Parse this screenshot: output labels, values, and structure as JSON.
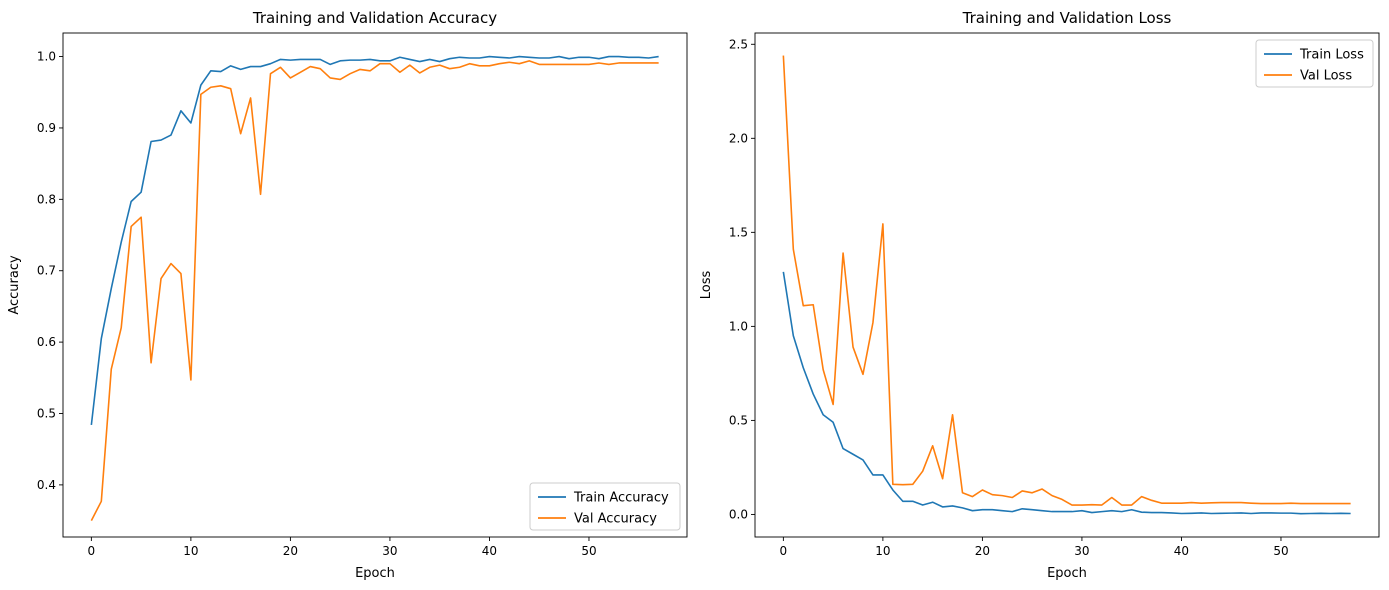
{
  "chart_data": [
    {
      "type": "line",
      "title": "Training and Validation Accuracy",
      "xlabel": "Epoch",
      "ylabel": "Accuracy",
      "xlim": [
        -2.85,
        59.85
      ],
      "ylim": [
        0.327,
        1.033
      ],
      "xticks": [
        0,
        10,
        20,
        30,
        40,
        50
      ],
      "yticks": [
        0.4,
        0.5,
        0.6,
        0.7,
        0.8,
        0.9,
        1.0
      ],
      "ytick_labels": [
        "0.4",
        "0.5",
        "0.6",
        "0.7",
        "0.8",
        "0.9",
        "1.0"
      ],
      "grid": false,
      "legend_position": "lower-right",
      "series": [
        {
          "name": "Train Accuracy",
          "color": "#1f77b4",
          "values": [
            0.484,
            0.605,
            0.675,
            0.74,
            0.797,
            0.81,
            0.881,
            0.883,
            0.89,
            0.924,
            0.907,
            0.96,
            0.98,
            0.979,
            0.987,
            0.982,
            0.986,
            0.986,
            0.99,
            0.996,
            0.995,
            0.996,
            0.996,
            0.996,
            0.989,
            0.994,
            0.995,
            0.995,
            0.996,
            0.994,
            0.994,
            0.999,
            0.996,
            0.993,
            0.996,
            0.993,
            0.997,
            0.999,
            0.998,
            0.998,
            1.0,
            0.999,
            0.998,
            1.0,
            0.999,
            0.998,
            0.998,
            1.0,
            0.997,
            0.999,
            0.999,
            0.997,
            1.0,
            1.0,
            0.999,
            0.999,
            0.998,
            1.0
          ]
        },
        {
          "name": "Val Accuracy",
          "color": "#ff7f0e",
          "values": [
            0.35,
            0.377,
            0.562,
            0.62,
            0.762,
            0.775,
            0.571,
            0.689,
            0.71,
            0.696,
            0.547,
            0.947,
            0.957,
            0.959,
            0.955,
            0.892,
            0.942,
            0.807,
            0.976,
            0.985,
            0.97,
            0.978,
            0.986,
            0.983,
            0.97,
            0.968,
            0.976,
            0.982,
            0.98,
            0.99,
            0.99,
            0.978,
            0.988,
            0.977,
            0.985,
            0.988,
            0.983,
            0.985,
            0.99,
            0.987,
            0.987,
            0.99,
            0.992,
            0.99,
            0.994,
            0.989,
            0.989,
            0.989,
            0.989,
            0.989,
            0.989,
            0.991,
            0.989,
            0.991,
            0.991,
            0.991,
            0.991,
            0.991
          ]
        }
      ]
    },
    {
      "type": "line",
      "title": "Training and Validation Loss",
      "xlabel": "Epoch",
      "ylabel": "Loss",
      "xlim": [
        -2.85,
        59.85
      ],
      "ylim": [
        -0.12,
        2.56
      ],
      "xticks": [
        0,
        10,
        20,
        30,
        40,
        50
      ],
      "yticks": [
        0.0,
        0.5,
        1.0,
        1.5,
        2.0,
        2.5
      ],
      "ytick_labels": [
        "0.0",
        "0.5",
        "1.0",
        "1.5",
        "2.0",
        "2.5"
      ],
      "grid": false,
      "legend_position": "upper-right",
      "series": [
        {
          "name": "Train Loss",
          "color": "#1f77b4",
          "values": [
            1.29,
            0.95,
            0.78,
            0.64,
            0.53,
            0.49,
            0.35,
            0.32,
            0.29,
            0.21,
            0.21,
            0.13,
            0.07,
            0.07,
            0.05,
            0.065,
            0.04,
            0.045,
            0.035,
            0.02,
            0.025,
            0.025,
            0.02,
            0.015,
            0.03,
            0.025,
            0.02,
            0.015,
            0.015,
            0.015,
            0.02,
            0.01,
            0.015,
            0.02,
            0.015,
            0.025,
            0.012,
            0.01,
            0.01,
            0.008,
            0.005,
            0.006,
            0.008,
            0.005,
            0.006,
            0.007,
            0.008,
            0.005,
            0.008,
            0.008,
            0.007,
            0.007,
            0.004,
            0.005,
            0.006,
            0.005,
            0.006,
            0.005
          ]
        },
        {
          "name": "Val Loss",
          "color": "#ff7f0e",
          "values": [
            2.44,
            1.41,
            1.11,
            1.115,
            0.77,
            0.585,
            1.39,
            0.89,
            0.745,
            1.02,
            1.545,
            0.16,
            0.158,
            0.16,
            0.23,
            0.365,
            0.19,
            0.53,
            0.115,
            0.095,
            0.13,
            0.105,
            0.1,
            0.09,
            0.125,
            0.115,
            0.135,
            0.1,
            0.08,
            0.05,
            0.05,
            0.052,
            0.05,
            0.09,
            0.05,
            0.05,
            0.095,
            0.075,
            0.06,
            0.06,
            0.06,
            0.063,
            0.06,
            0.062,
            0.063,
            0.063,
            0.063,
            0.06,
            0.058,
            0.058,
            0.058,
            0.06,
            0.058,
            0.058,
            0.058,
            0.058,
            0.058,
            0.058
          ]
        }
      ]
    }
  ]
}
